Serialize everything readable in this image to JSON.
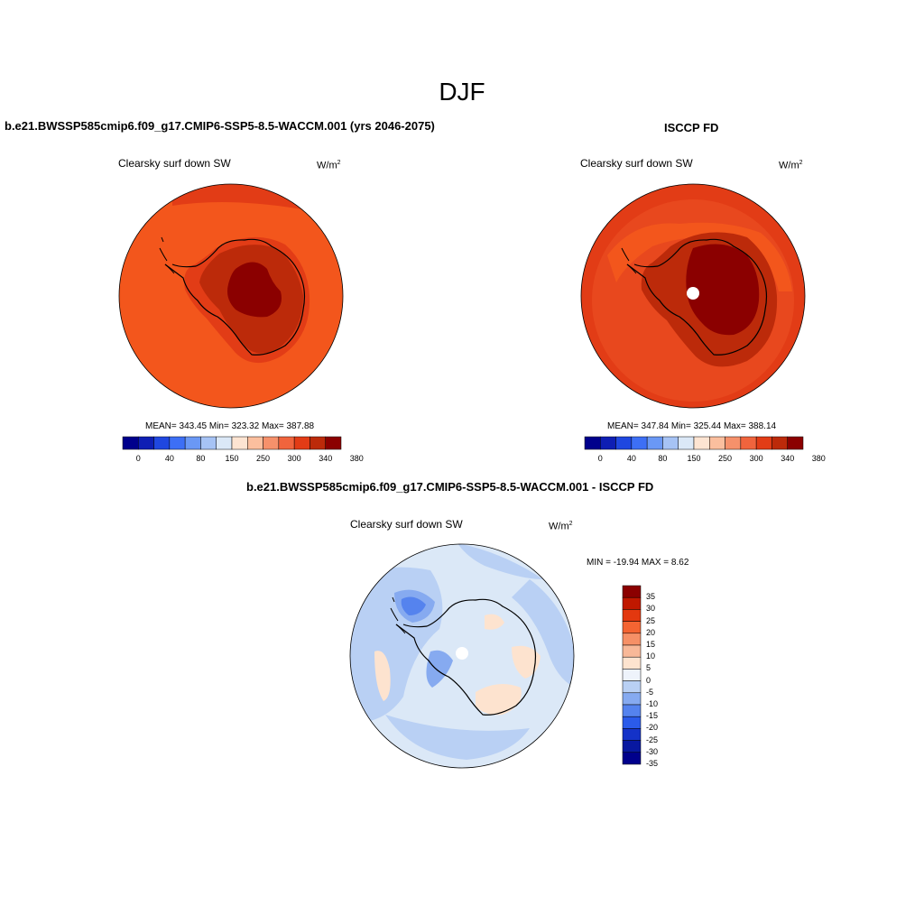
{
  "page": {
    "title": "DJF"
  },
  "panels": {
    "model": {
      "title": "b.e21.BWSSP585cmip6.f09_g17.CMIP6-SSP5-8.5-WACCM.001 (yrs 2046-2075)",
      "variable": "Clearsky surf down SW",
      "units": "W/m",
      "units_sup": "2",
      "stats": "MEAN= 343.45  Min= 323.32  Max= 387.88"
    },
    "obs": {
      "title": "ISCCP FD",
      "variable": "Clearsky surf down SW",
      "units": "W/m",
      "units_sup": "2",
      "stats": "MEAN= 347.84  Min= 325.44  Max= 388.14"
    },
    "diff": {
      "title": "b.e21.BWSSP585cmip6.f09_g17.CMIP6-SSP5-8.5-WACCM.001 - ISCCP FD",
      "variable": "Clearsky surf down SW",
      "units": "W/m",
      "units_sup": "2",
      "stats": "MIN = -19.94 MAX =   8.62"
    }
  },
  "colorbars": {
    "abs": {
      "colors": [
        "#00008c",
        "#0e1eb4",
        "#1f47e0",
        "#3d6ff5",
        "#6a98f5",
        "#a6c3f5",
        "#dbe8f7",
        "#fde4d2",
        "#fbbf9e",
        "#f6916b",
        "#f0643d",
        "#e23c16",
        "#bc2a0a",
        "#8b0000"
      ],
      "tick_labels": [
        "0",
        "40",
        "80",
        "150",
        "250",
        "300",
        "340",
        "380"
      ]
    },
    "diff": {
      "colors": [
        "#8b0000",
        "#c01800",
        "#e3380f",
        "#f46432",
        "#f69066",
        "#f8b898",
        "#fde3cf",
        "#eef3fb",
        "#b9d0f4",
        "#86aaf0",
        "#5583ee",
        "#2b5bea",
        "#1432c8",
        "#0818a0",
        "#00008c"
      ],
      "tick_labels": [
        "35",
        "30",
        "25",
        "20",
        "15",
        "10",
        "5",
        "0",
        "-5",
        "-10",
        "-15",
        "-20",
        "-25",
        "-30",
        "-35"
      ]
    }
  },
  "map_colors": {
    "model": {
      "ocean": "#f3561c",
      "coast_band": "#e23c16",
      "land_mid": "#bc2a0a",
      "land_high": "#8b0000"
    },
    "obs": {
      "outer": "#e23c16",
      "ocean": "#e5421a",
      "coast_band": "#bc2a0a",
      "land_high": "#8b0000"
    },
    "diff": {
      "base": "#dbe8f7",
      "neg5": "#b9d0f4",
      "neg10": "#86aaf0",
      "neg15": "#5583ee",
      "pos5": "#fde3cf"
    }
  }
}
